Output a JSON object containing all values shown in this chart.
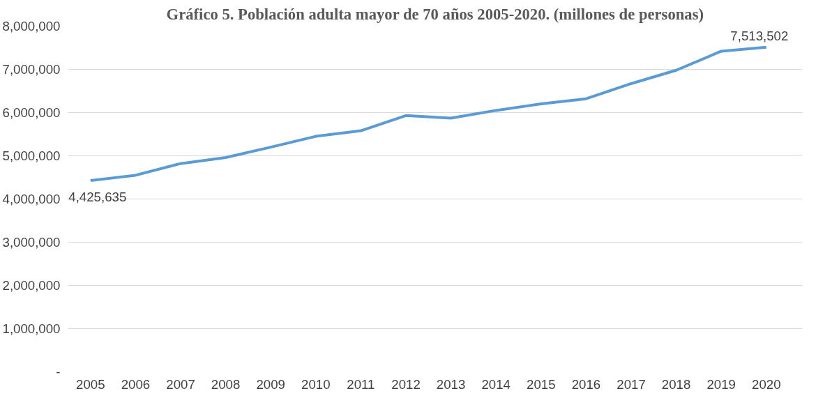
{
  "chart_data": {
    "type": "line",
    "title": "Gráfico 5. Población adulta mayor de 70 años 2005-2020. (millones de personas)",
    "categories": [
      "2005",
      "2006",
      "2007",
      "2008",
      "2009",
      "2010",
      "2011",
      "2012",
      "2013",
      "2014",
      "2015",
      "2016",
      "2017",
      "2018",
      "2019",
      "2020"
    ],
    "series": [
      {
        "color": "#5b9bd5",
        "values": [
          4425635,
          4550000,
          4820000,
          4960000,
          5200000,
          5450000,
          5580000,
          5930000,
          5870000,
          6050000,
          6200000,
          6320000,
          6670000,
          6980000,
          7420000,
          7513502
        ],
        "value_labels": [
          "4,425,635",
          null,
          null,
          null,
          null,
          null,
          null,
          null,
          null,
          null,
          null,
          null,
          null,
          null,
          null,
          "7,513,502"
        ]
      }
    ],
    "ylim": [
      0,
      8000000
    ],
    "yticks": [
      {
        "value": 0,
        "label": "-"
      },
      {
        "value": 1000000,
        "label": "1,000,000"
      },
      {
        "value": 2000000,
        "label": "2,000,000"
      },
      {
        "value": 3000000,
        "label": "3,000,000"
      },
      {
        "value": 4000000,
        "label": "4,000,000"
      },
      {
        "value": 5000000,
        "label": "5,000,000"
      },
      {
        "value": 6000000,
        "label": "6,000,000"
      },
      {
        "value": 7000000,
        "label": "7,000,000"
      },
      {
        "value": 8000000,
        "label": "8,000,000"
      }
    ],
    "grid": "y",
    "marker": "none",
    "line_style": "solid"
  }
}
